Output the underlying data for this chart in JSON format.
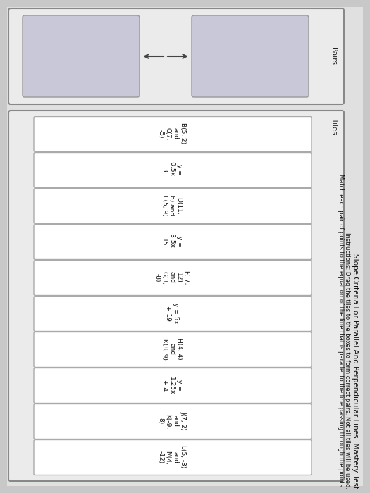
{
  "title": "Slope Criteria For Parallel And Perpendicular Lines: Mastery Test",
  "instructions_line1": "Instructions: Drag the tiles to the boxes to form correct pairs. Not all tiles will be used.",
  "instructions_line2": "Match each pair of points to the equation of the line that is parallel to the line passing through the points.",
  "tiles_label": "Tiles",
  "pairs_label": "Pairs",
  "tiles": [
    "B(5, 2)\nand\nC(7,\n-5)",
    "y =\n-0.5x -\n3",
    "D(11,\n6) and\nE(5, 9)",
    "y =\n-3.5x -\n15",
    "F(-7,\n12)\nand\nG(3,\n-8)",
    "y = 5x\n+ 19",
    "H(4, 4)\nand\nK(8, 9)",
    "y =\n1.25x\n+ 4",
    "J(7, 2)\nand\nK(-9,\n8)",
    "L(5, -3)\nand\nM(4,\n-12)"
  ],
  "bg_color": "#c8c8c8",
  "page_color": "#e0e0e0",
  "tile_bg": "#ffffff",
  "tile_border": "#aaaaaa",
  "pairs_box_bg": "#c8c8d8",
  "pairs_box_border": "#999999",
  "outer_box_bg": "#ebebeb",
  "outer_box_border": "#888888",
  "title_color": "#111111",
  "text_color": "#111111",
  "label_color": "#222222",
  "font_size_title": 7.5,
  "font_size_instructions": 6.0,
  "font_size_tile": 6.5,
  "font_size_label": 7.5
}
